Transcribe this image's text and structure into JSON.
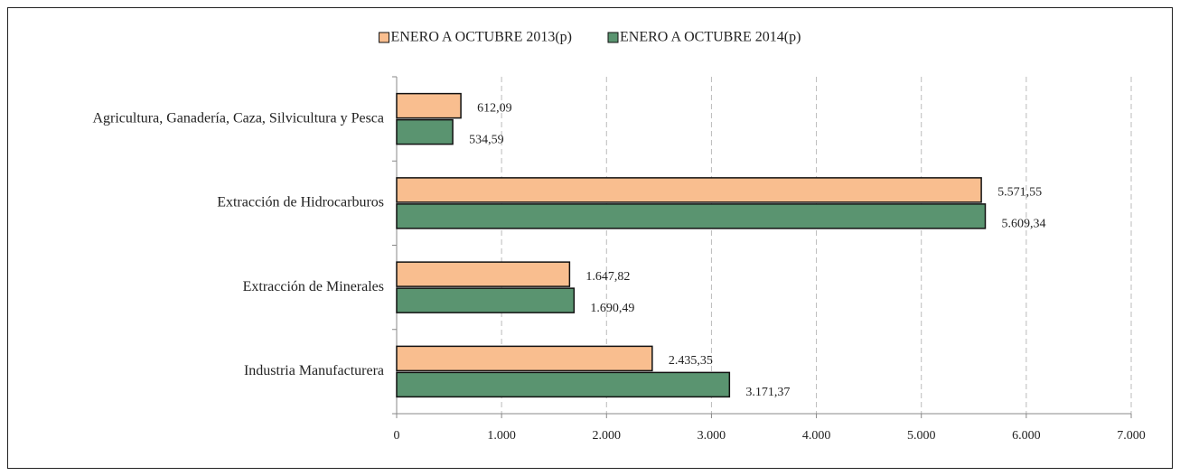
{
  "chart_data": {
    "type": "barh",
    "categories": [
      "Agricultura, Ganadería, Caza, Silvicultura y Pesca",
      "Extracción de Hidrocarburos",
      "Extracción de Minerales",
      "Industria Manufacturera"
    ],
    "series": [
      {
        "name": "ENERO A OCTUBRE 2013(p)",
        "color": "#f9be8f",
        "values": [
          612.09,
          5571.55,
          1647.82,
          2435.35
        ],
        "value_labels": [
          "612,09",
          "5.571,55",
          "1.647,82",
          "2.435,35"
        ]
      },
      {
        "name": "ENERO A OCTUBRE 2014(p)",
        "color": "#5a9470",
        "values": [
          534.59,
          5609.34,
          1690.49,
          3171.37
        ],
        "value_labels": [
          "534,59",
          "5.609,34",
          "1.690,49",
          "3.171,37"
        ]
      }
    ],
    "xlim": [
      0,
      7000
    ],
    "xticks": [
      0,
      {
        "value": 1000,
        "label": "1.000"
      },
      {
        "value": 2000,
        "label": "2.000"
      },
      {
        "value": 3000,
        "label": "3.000"
      },
      {
        "value": 4000,
        "label": "4.000"
      },
      {
        "value": 5000,
        "label": "5.000"
      },
      {
        "value": 6000,
        "label": "6.000"
      },
      {
        "value": 7000,
        "label": "7.000"
      }
    ],
    "grid": true,
    "legend": "top"
  }
}
